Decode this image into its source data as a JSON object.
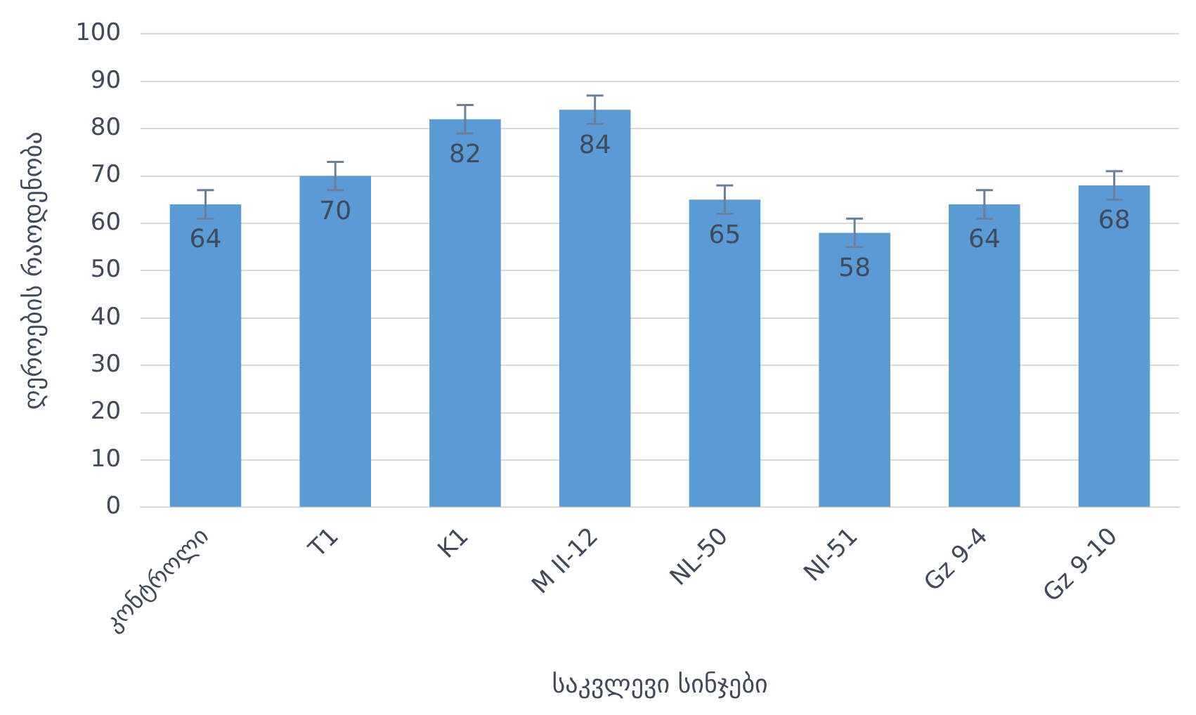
{
  "chart_data": {
    "type": "bar",
    "xlabel": "საკვლევი სინჯები",
    "ylabel": "ღეროების რაოდენობა",
    "categories": [
      "კონტროლი",
      "T1",
      "K1",
      "M II-12",
      "NL-50",
      "NI-51",
      "Gz 9-4",
      "Gz 9-10"
    ],
    "values": [
      64,
      70,
      82,
      84,
      65,
      58,
      64,
      68
    ],
    "errors": [
      3,
      3,
      3,
      3,
      3,
      3,
      3,
      3
    ],
    "color": "#5b9bd5",
    "data_labels": true,
    "grid": "y",
    "ylim": [
      0,
      100
    ],
    "yticks": [
      0,
      10,
      20,
      30,
      40,
      50,
      60,
      70,
      80,
      90,
      100
    ]
  }
}
